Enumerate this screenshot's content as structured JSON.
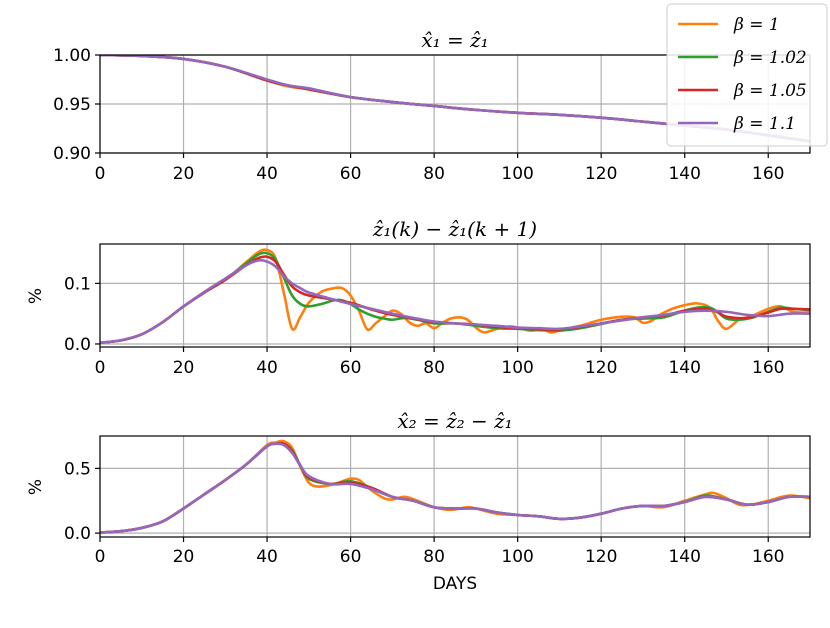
{
  "chart_data": [
    {
      "type": "line",
      "title": "x̂₁ = ẑ₁",
      "xlabel": "",
      "ylabel": "",
      "xlim": [
        0,
        170
      ],
      "ylim": [
        0.9,
        1.0
      ],
      "xticks": [
        "0",
        "20",
        "40",
        "60",
        "80",
        "100",
        "120",
        "140",
        "160"
      ],
      "yticks": [
        "0.90",
        "0.95",
        "1.00"
      ],
      "grid": true,
      "legend": "top-right",
      "series": [
        {
          "name": "β = 1",
          "color": "#ff7f0e",
          "x": [
            0,
            10,
            20,
            30,
            40,
            45,
            50,
            60,
            70,
            80,
            90,
            100,
            110,
            120,
            130,
            140,
            150,
            160,
            170
          ],
          "y": [
            1.0,
            0.999,
            0.996,
            0.988,
            0.974,
            0.968,
            0.965,
            0.957,
            0.952,
            0.948,
            0.944,
            0.941,
            0.939,
            0.936,
            0.932,
            0.928,
            0.924,
            0.918,
            0.912
          ]
        },
        {
          "name": "β = 1.02",
          "color": "#2ca02c",
          "x": [
            0,
            10,
            20,
            30,
            40,
            45,
            50,
            60,
            70,
            80,
            90,
            100,
            110,
            120,
            130,
            140,
            150,
            160,
            170
          ],
          "y": [
            1.0,
            0.999,
            0.996,
            0.988,
            0.974,
            0.969,
            0.965,
            0.957,
            0.952,
            0.948,
            0.944,
            0.941,
            0.939,
            0.936,
            0.932,
            0.928,
            0.924,
            0.918,
            0.912
          ]
        },
        {
          "name": "β = 1.05",
          "color": "#d62728",
          "x": [
            0,
            10,
            20,
            30,
            40,
            45,
            50,
            60,
            70,
            80,
            90,
            100,
            110,
            120,
            130,
            140,
            150,
            160,
            170
          ],
          "y": [
            1.0,
            0.999,
            0.996,
            0.988,
            0.974,
            0.969,
            0.965,
            0.957,
            0.952,
            0.948,
            0.944,
            0.941,
            0.939,
            0.936,
            0.932,
            0.928,
            0.924,
            0.918,
            0.912
          ]
        },
        {
          "name": "β = 1.1",
          "color": "#9467bd",
          "x": [
            0,
            10,
            20,
            30,
            40,
            45,
            50,
            60,
            70,
            80,
            90,
            100,
            110,
            120,
            130,
            140,
            150,
            160,
            170
          ],
          "y": [
            1.0,
            0.999,
            0.996,
            0.988,
            0.975,
            0.969,
            0.966,
            0.957,
            0.952,
            0.948,
            0.944,
            0.941,
            0.939,
            0.936,
            0.932,
            0.928,
            0.924,
            0.918,
            0.912
          ]
        }
      ]
    },
    {
      "type": "line",
      "title": "ẑ₁(k) − ẑ₁(k + 1)",
      "xlabel": "",
      "ylabel": "%",
      "xlim": [
        0,
        170
      ],
      "ylim": [
        -0.005,
        0.165
      ],
      "xticks": [
        "0",
        "20",
        "40",
        "60",
        "80",
        "100",
        "120",
        "140",
        "160"
      ],
      "yticks": [
        "0.0",
        "0.1"
      ],
      "grid": true,
      "series": [
        {
          "name": "β = 1",
          "color": "#ff7f0e",
          "x": [
            0,
            5,
            10,
            15,
            20,
            25,
            30,
            35,
            38,
            40,
            42,
            44,
            46,
            48,
            50,
            53,
            56,
            58,
            60,
            62,
            64,
            66,
            68,
            70,
            72,
            74,
            76,
            78,
            80,
            82,
            84,
            86,
            88,
            90,
            92,
            95,
            98,
            100,
            103,
            106,
            108,
            110,
            113,
            116,
            120,
            125,
            128,
            130,
            132,
            134,
            137,
            140,
            143,
            146,
            148,
            150,
            153,
            156,
            160,
            163,
            166,
            170
          ],
          "y": [
            0.002,
            0.006,
            0.016,
            0.036,
            0.062,
            0.085,
            0.106,
            0.135,
            0.152,
            0.155,
            0.142,
            0.085,
            0.025,
            0.045,
            0.068,
            0.086,
            0.092,
            0.092,
            0.08,
            0.055,
            0.024,
            0.034,
            0.045,
            0.055,
            0.05,
            0.036,
            0.03,
            0.034,
            0.026,
            0.035,
            0.042,
            0.044,
            0.04,
            0.027,
            0.019,
            0.025,
            0.029,
            0.027,
            0.022,
            0.024,
            0.019,
            0.022,
            0.027,
            0.032,
            0.04,
            0.045,
            0.044,
            0.035,
            0.038,
            0.048,
            0.058,
            0.064,
            0.067,
            0.06,
            0.038,
            0.025,
            0.04,
            0.046,
            0.058,
            0.062,
            0.053,
            0.052
          ]
        },
        {
          "name": "β = 1.02",
          "color": "#2ca02c",
          "x": [
            0,
            5,
            10,
            15,
            20,
            25,
            30,
            35,
            38,
            40,
            42,
            44,
            46,
            48,
            50,
            53,
            56,
            58,
            60,
            62,
            64,
            66,
            68,
            70,
            73,
            76,
            80,
            85,
            90,
            95,
            100,
            105,
            110,
            115,
            120,
            125,
            130,
            135,
            140,
            143,
            146,
            148,
            150,
            153,
            156,
            160,
            163,
            166,
            170
          ],
          "y": [
            0.002,
            0.006,
            0.016,
            0.036,
            0.062,
            0.085,
            0.106,
            0.133,
            0.148,
            0.15,
            0.14,
            0.11,
            0.08,
            0.066,
            0.062,
            0.066,
            0.072,
            0.072,
            0.066,
            0.057,
            0.05,
            0.045,
            0.042,
            0.04,
            0.043,
            0.04,
            0.034,
            0.034,
            0.03,
            0.026,
            0.025,
            0.023,
            0.022,
            0.026,
            0.033,
            0.04,
            0.042,
            0.044,
            0.055,
            0.06,
            0.06,
            0.052,
            0.042,
            0.04,
            0.043,
            0.053,
            0.06,
            0.058,
            0.056
          ]
        },
        {
          "name": "β = 1.05",
          "color": "#d62728",
          "x": [
            0,
            5,
            10,
            15,
            20,
            25,
            30,
            35,
            38,
            40,
            42,
            44,
            46,
            48,
            50,
            55,
            60,
            65,
            70,
            75,
            80,
            85,
            90,
            95,
            100,
            105,
            110,
            115,
            120,
            125,
            130,
            135,
            140,
            145,
            148,
            150,
            155,
            160,
            163,
            166,
            170
          ],
          "y": [
            0.002,
            0.006,
            0.016,
            0.036,
            0.062,
            0.085,
            0.106,
            0.13,
            0.142,
            0.144,
            0.136,
            0.115,
            0.095,
            0.085,
            0.08,
            0.074,
            0.068,
            0.057,
            0.048,
            0.042,
            0.036,
            0.034,
            0.032,
            0.028,
            0.026,
            0.024,
            0.024,
            0.028,
            0.034,
            0.04,
            0.044,
            0.047,
            0.055,
            0.058,
            0.052,
            0.045,
            0.043,
            0.052,
            0.058,
            0.058,
            0.057
          ]
        },
        {
          "name": "β = 1.1",
          "color": "#9467bd",
          "x": [
            0,
            5,
            10,
            15,
            20,
            25,
            30,
            35,
            38,
            40,
            42,
            44,
            46,
            48,
            50,
            55,
            60,
            65,
            70,
            75,
            80,
            85,
            90,
            95,
            100,
            105,
            110,
            115,
            120,
            125,
            130,
            135,
            140,
            145,
            150,
            155,
            160,
            165,
            170
          ],
          "y": [
            0.002,
            0.006,
            0.016,
            0.036,
            0.062,
            0.086,
            0.108,
            0.13,
            0.138,
            0.136,
            0.128,
            0.112,
            0.1,
            0.092,
            0.085,
            0.075,
            0.066,
            0.058,
            0.05,
            0.043,
            0.037,
            0.034,
            0.032,
            0.03,
            0.027,
            0.026,
            0.025,
            0.029,
            0.034,
            0.039,
            0.044,
            0.048,
            0.053,
            0.055,
            0.053,
            0.048,
            0.046,
            0.05,
            0.05
          ]
        }
      ]
    },
    {
      "type": "line",
      "title": "x̂₂ = ẑ₂ − ẑ₁",
      "xlabel": "DAYS",
      "ylabel": "%",
      "xlim": [
        0,
        170
      ],
      "ylim": [
        -0.03,
        0.75
      ],
      "xticks": [
        "0",
        "20",
        "40",
        "60",
        "80",
        "100",
        "120",
        "140",
        "160"
      ],
      "yticks": [
        "0.0",
        "0.5"
      ],
      "grid": true,
      "series": [
        {
          "name": "β = 1",
          "color": "#ff7f0e",
          "x": [
            0,
            5,
            10,
            15,
            20,
            25,
            30,
            35,
            40,
            42,
            44,
            46,
            48,
            50,
            52,
            55,
            58,
            60,
            62,
            65,
            68,
            70,
            73,
            76,
            80,
            84,
            88,
            90,
            95,
            100,
            105,
            110,
            115,
            120,
            125,
            130,
            135,
            140,
            145,
            147,
            150,
            153,
            156,
            160,
            165,
            170
          ],
          "y": [
            0.005,
            0.015,
            0.04,
            0.09,
            0.19,
            0.3,
            0.41,
            0.53,
            0.68,
            0.7,
            0.71,
            0.66,
            0.51,
            0.39,
            0.36,
            0.37,
            0.4,
            0.42,
            0.41,
            0.33,
            0.27,
            0.26,
            0.28,
            0.25,
            0.2,
            0.18,
            0.2,
            0.19,
            0.15,
            0.14,
            0.13,
            0.11,
            0.12,
            0.15,
            0.19,
            0.21,
            0.2,
            0.25,
            0.3,
            0.31,
            0.27,
            0.22,
            0.22,
            0.25,
            0.29,
            0.27
          ]
        },
        {
          "name": "β = 1.02",
          "color": "#2ca02c",
          "x": [
            0,
            5,
            10,
            15,
            20,
            25,
            30,
            35,
            40,
            42,
            44,
            46,
            48,
            50,
            55,
            60,
            65,
            70,
            75,
            80,
            85,
            90,
            95,
            100,
            105,
            110,
            115,
            120,
            125,
            130,
            135,
            140,
            145,
            150,
            155,
            160,
            165,
            170
          ],
          "y": [
            0.005,
            0.015,
            0.04,
            0.09,
            0.19,
            0.3,
            0.41,
            0.53,
            0.67,
            0.69,
            0.69,
            0.64,
            0.52,
            0.42,
            0.38,
            0.4,
            0.35,
            0.28,
            0.25,
            0.2,
            0.19,
            0.19,
            0.16,
            0.14,
            0.13,
            0.11,
            0.12,
            0.15,
            0.19,
            0.21,
            0.21,
            0.24,
            0.29,
            0.26,
            0.22,
            0.24,
            0.28,
            0.28
          ]
        },
        {
          "name": "β = 1.05",
          "color": "#d62728",
          "x": [
            0,
            5,
            10,
            15,
            20,
            25,
            30,
            35,
            40,
            42,
            44,
            46,
            48,
            50,
            55,
            60,
            65,
            70,
            75,
            80,
            85,
            90,
            95,
            100,
            105,
            110,
            115,
            120,
            125,
            130,
            135,
            140,
            145,
            150,
            155,
            160,
            165,
            170
          ],
          "y": [
            0.005,
            0.015,
            0.04,
            0.09,
            0.19,
            0.3,
            0.41,
            0.53,
            0.67,
            0.69,
            0.69,
            0.63,
            0.52,
            0.43,
            0.38,
            0.39,
            0.35,
            0.28,
            0.25,
            0.2,
            0.19,
            0.19,
            0.16,
            0.14,
            0.13,
            0.11,
            0.12,
            0.15,
            0.19,
            0.21,
            0.21,
            0.24,
            0.28,
            0.26,
            0.22,
            0.24,
            0.28,
            0.28
          ]
        },
        {
          "name": "β = 1.1",
          "color": "#9467bd",
          "x": [
            0,
            5,
            10,
            15,
            20,
            25,
            30,
            35,
            40,
            42,
            44,
            46,
            48,
            50,
            55,
            60,
            65,
            70,
            75,
            80,
            85,
            90,
            95,
            100,
            105,
            110,
            115,
            120,
            125,
            130,
            135,
            140,
            145,
            150,
            155,
            160,
            165,
            170
          ],
          "y": [
            0.005,
            0.015,
            0.04,
            0.09,
            0.19,
            0.3,
            0.41,
            0.53,
            0.67,
            0.69,
            0.68,
            0.62,
            0.52,
            0.44,
            0.38,
            0.38,
            0.34,
            0.28,
            0.25,
            0.2,
            0.19,
            0.19,
            0.16,
            0.14,
            0.13,
            0.11,
            0.12,
            0.15,
            0.19,
            0.21,
            0.21,
            0.24,
            0.28,
            0.26,
            0.22,
            0.24,
            0.28,
            0.28
          ]
        }
      ]
    }
  ],
  "legend": {
    "entries": [
      {
        "label": "β = 1",
        "color": "#ff7f0e"
      },
      {
        "label": "β = 1.02",
        "color": "#2ca02c"
      },
      {
        "label": "β = 1.05",
        "color": "#d62728"
      },
      {
        "label": "β = 1.1",
        "color": "#9467bd"
      }
    ]
  }
}
